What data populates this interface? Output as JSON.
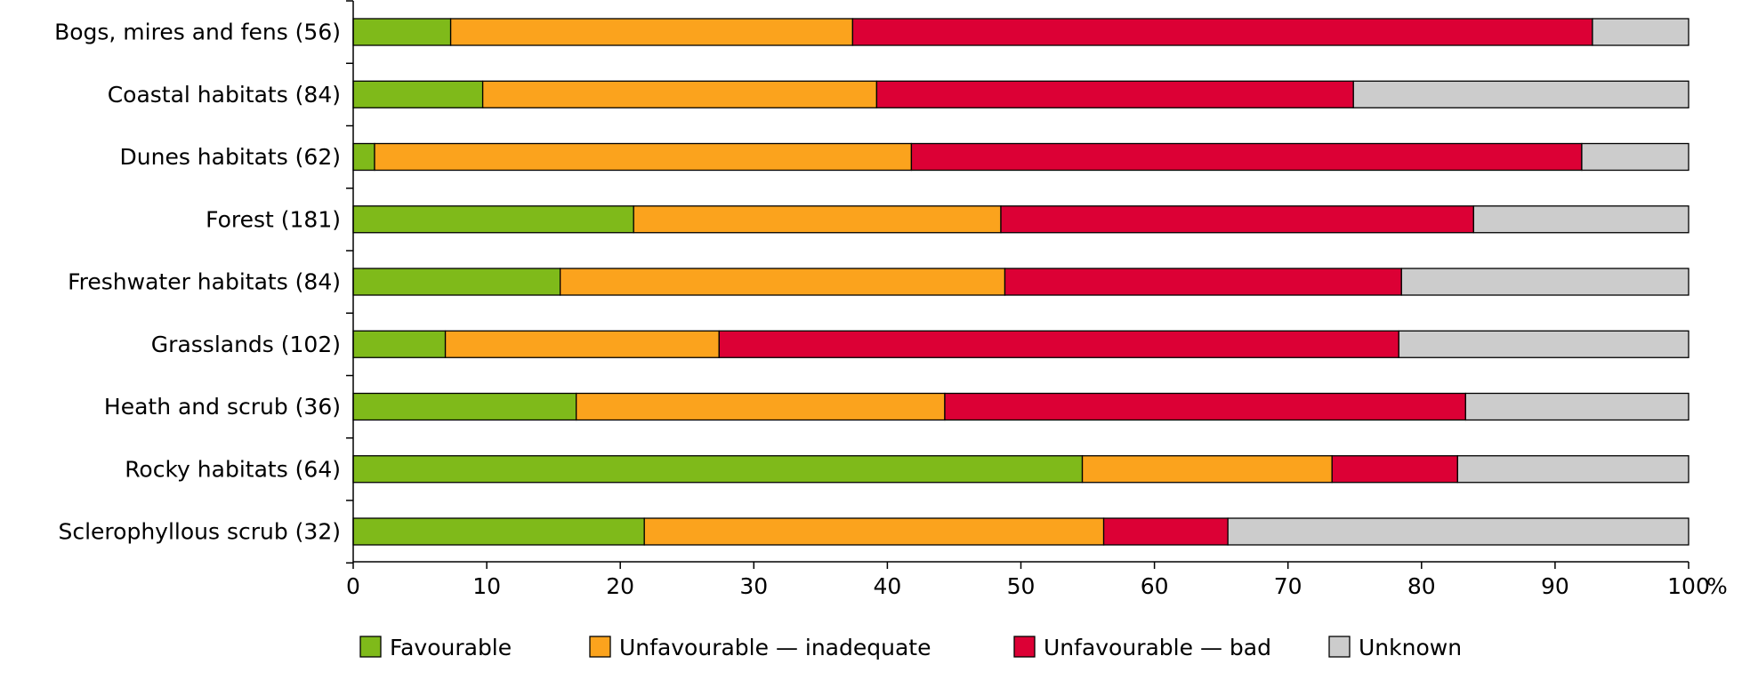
{
  "chart_data": {
    "type": "bar",
    "orientation": "horizontal",
    "stacked": true,
    "categories": [
      "Bogs, mires and fens (56)",
      "Coastal habitats (84)",
      "Dunes habitats (62)",
      "Forest (181)",
      "Freshwater habitats (84)",
      "Grasslands (102)",
      "Heath and scrub (36)",
      "Rocky habitats (64)",
      "Sclerophyllous scrub (32)"
    ],
    "series": [
      {
        "name": "Favourable",
        "color": "#7fba1a",
        "values": [
          7.3,
          9.7,
          1.6,
          21.0,
          15.5,
          6.9,
          16.7,
          54.6,
          21.8
        ]
      },
      {
        "name": "Unfavourable — inadequate",
        "color": "#fba31d",
        "values": [
          30.1,
          29.5,
          40.2,
          27.5,
          33.3,
          20.5,
          27.6,
          18.7,
          34.4
        ]
      },
      {
        "name": "Unfavourable — bad",
        "color": "#dc0035",
        "values": [
          55.4,
          35.7,
          50.2,
          35.4,
          29.7,
          50.9,
          39.0,
          9.4,
          9.3
        ]
      },
      {
        "name": "Unknown",
        "color": "#cccccc",
        "values": [
          7.2,
          25.1,
          8.0,
          16.1,
          21.5,
          21.7,
          16.7,
          17.3,
          34.5
        ]
      }
    ],
    "xticks": [
      "0",
      "10",
      "20",
      "30",
      "40",
      "50",
      "60",
      "70",
      "80",
      "90",
      "100"
    ],
    "xunit": "%",
    "xlim": [
      0,
      100
    ],
    "grid": false,
    "legend_position": "bottom"
  }
}
